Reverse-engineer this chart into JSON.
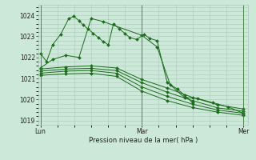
{
  "xlabel": "Pression niveau de la mer( hPa )",
  "day_labels": [
    "Lun",
    "Mar",
    "Mer"
  ],
  "day_positions": [
    0.0,
    1.0,
    2.0
  ],
  "ylim": [
    1018.8,
    1024.5
  ],
  "yticks": [
    1019,
    1020,
    1021,
    1022,
    1023,
    1024
  ],
  "xlim": [
    -0.02,
    2.05
  ],
  "bg_color": "#cce8d8",
  "grid_color": "#aac8b8",
  "line_color": "#1a6b1a",
  "lines": [
    {
      "x": [
        0.0,
        0.06,
        0.12,
        0.2,
        0.28,
        0.33,
        0.38,
        0.42,
        0.47,
        0.52,
        0.57,
        0.62,
        0.67,
        0.72,
        0.78,
        0.83,
        0.88,
        0.95,
        1.02,
        1.08,
        1.15,
        1.25,
        1.35,
        1.42,
        1.5
      ],
      "y": [
        1022.2,
        1021.8,
        1022.6,
        1023.1,
        1023.85,
        1023.95,
        1023.75,
        1023.55,
        1023.35,
        1023.15,
        1022.95,
        1022.75,
        1022.6,
        1023.6,
        1023.35,
        1023.15,
        1022.95,
        1022.85,
        1023.1,
        1022.9,
        1022.8,
        1020.8,
        1020.5,
        1020.2,
        1019.85
      ]
    },
    {
      "x": [
        0.0,
        0.12,
        0.25,
        0.38,
        0.5,
        0.62,
        1.0,
        1.15,
        1.28,
        1.42,
        1.55,
        1.7,
        1.85,
        2.0
      ],
      "y": [
        1021.5,
        1021.9,
        1022.1,
        1022.0,
        1023.85,
        1023.7,
        1023.05,
        1022.5,
        1020.7,
        1020.1,
        1020.05,
        1019.85,
        1019.65,
        1019.35
      ]
    },
    {
      "x": [
        0.0,
        0.25,
        0.5,
        0.75,
        1.0,
        1.25,
        1.5,
        1.75,
        2.0
      ],
      "y": [
        1021.45,
        1021.55,
        1021.6,
        1021.5,
        1020.95,
        1020.55,
        1020.1,
        1019.75,
        1019.55
      ]
    },
    {
      "x": [
        0.0,
        0.25,
        0.5,
        0.75,
        1.0,
        1.25,
        1.5,
        1.75,
        2.0
      ],
      "y": [
        1021.35,
        1021.45,
        1021.48,
        1021.38,
        1020.8,
        1020.35,
        1019.95,
        1019.6,
        1019.45
      ]
    },
    {
      "x": [
        0.0,
        0.25,
        0.5,
        0.75,
        1.0,
        1.25,
        1.5,
        1.75,
        2.0
      ],
      "y": [
        1021.25,
        1021.35,
        1021.38,
        1021.25,
        1020.6,
        1020.15,
        1019.78,
        1019.5,
        1019.35
      ]
    },
    {
      "x": [
        0.0,
        0.25,
        0.5,
        0.75,
        1.0,
        1.25,
        1.5,
        1.75,
        2.0
      ],
      "y": [
        1021.15,
        1021.22,
        1021.25,
        1021.1,
        1020.4,
        1019.95,
        1019.62,
        1019.4,
        1019.25
      ]
    }
  ]
}
